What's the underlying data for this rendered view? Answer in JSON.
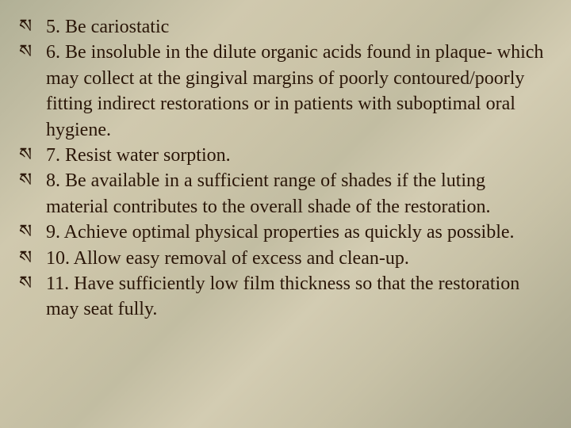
{
  "slide": {
    "background_gradient_colors": [
      "#b1b096",
      "#bfbba1",
      "#d0c9ae",
      "#cbc4a8",
      "#c2bda2",
      "#d3ccb2",
      "#c7c1a6",
      "#b6b298",
      "#a9a68e"
    ],
    "vignette_color": "#28281e",
    "text_color": "#2a1608",
    "font_family": "Georgia, serif",
    "font_size_pt": 18,
    "bullet_glyph": "ས",
    "items": [
      {
        "text": "5. Be cariostatic"
      },
      {
        "text": "6. Be insoluble in the dilute organic acids found in plaque- which may collect at the gingival margins of poorly contoured/poorly fitting indirect restorations or in patients with suboptimal oral hygiene."
      },
      {
        "text": "7. Resist water sorption."
      },
      {
        "text": "8. Be available in a sufficient range of shades if the luting material contributes to the overall shade of the restoration."
      },
      {
        "text": "9. Achieve optimal physical properties as quickly as possible."
      },
      {
        "text": "10. Allow easy removal of excess and clean-up."
      },
      {
        "text": "11. Have sufficiently low film thickness so that the restoration may seat fully."
      }
    ]
  }
}
